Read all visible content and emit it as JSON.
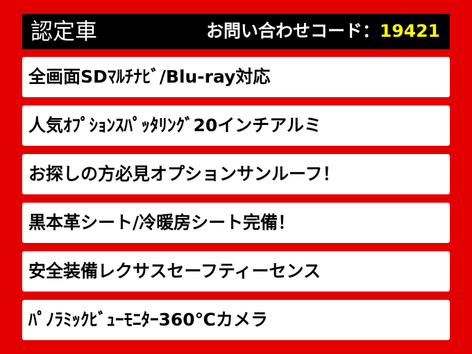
{
  "header": {
    "title": "認定車",
    "inquiry_label": "お問い合わせコード：",
    "inquiry_code": "19421"
  },
  "colors": {
    "background": "#e20000",
    "header_bg": "#000000",
    "code": "#ffff00"
  },
  "features": [
    "全画面SDﾏﾙﾁﾅﾋﾞ/Blu-ray対応",
    "人気ｵﾌﾟｼｮﾝｽﾊﾟｯﾀﾘﾝｸﾞ20インチアルミ",
    "お探しの方必見オプションサンルーフ！",
    "黒本革シート/冷暖房シート完備！",
    "安全装備レクサスセーフティーセンス",
    "ﾊﾟﾉﾗﾐｯｸﾋﾞｭｰﾓﾆﾀｰ360℃カメラ"
  ]
}
